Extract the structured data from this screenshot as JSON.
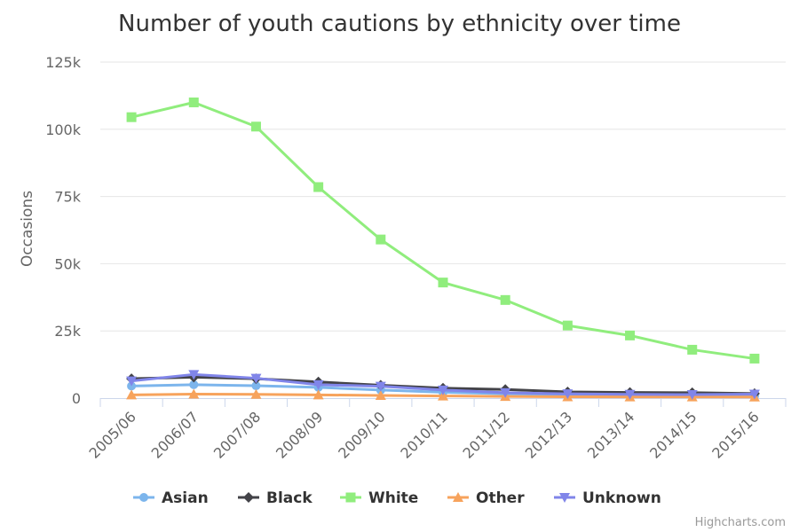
{
  "chart_data": {
    "type": "line",
    "title": "Number of youth cautions by ethnicity over time",
    "ylabel": "Occasions",
    "xlabel": "",
    "categories": [
      "2005/06",
      "2006/07",
      "2007/08",
      "2008/09",
      "2009/10",
      "2010/11",
      "2011/12",
      "2012/13",
      "2013/14",
      "2014/15",
      "2015/16"
    ],
    "ylim": [
      0,
      125000
    ],
    "yticks": [
      0,
      25000,
      50000,
      75000,
      100000,
      125000
    ],
    "ytick_labels": [
      "0",
      "25k",
      "50k",
      "75k",
      "100k",
      "125k"
    ],
    "grid": true,
    "legend_position": "bottom",
    "series": [
      {
        "name": "Asian",
        "color": "#7cb5ec",
        "marker": "circle",
        "values": [
          4500,
          5000,
          4600,
          4000,
          3000,
          2200,
          1600,
          1300,
          1100,
          1000,
          800
        ]
      },
      {
        "name": "Black",
        "color": "#434348",
        "marker": "diamond",
        "values": [
          7200,
          7800,
          7200,
          6000,
          4800,
          3700,
          3200,
          2300,
          2100,
          2000,
          1700
        ]
      },
      {
        "name": "White",
        "color": "#90ed7d",
        "marker": "square",
        "values": [
          104500,
          110000,
          101000,
          78500,
          59000,
          43000,
          36500,
          27000,
          23300,
          18000,
          14700
        ]
      },
      {
        "name": "Other",
        "color": "#f7a35c",
        "marker": "triangle",
        "values": [
          1200,
          1500,
          1400,
          1200,
          1000,
          800,
          600,
          500,
          450,
          450,
          400
        ]
      },
      {
        "name": "Unknown",
        "color": "#8085e9",
        "marker": "triangle-down",
        "values": [
          6400,
          8800,
          7400,
          5000,
          4400,
          3000,
          2000,
          1600,
          1400,
          1300,
          1500
        ]
      }
    ]
  },
  "credits": "Highcharts.com"
}
